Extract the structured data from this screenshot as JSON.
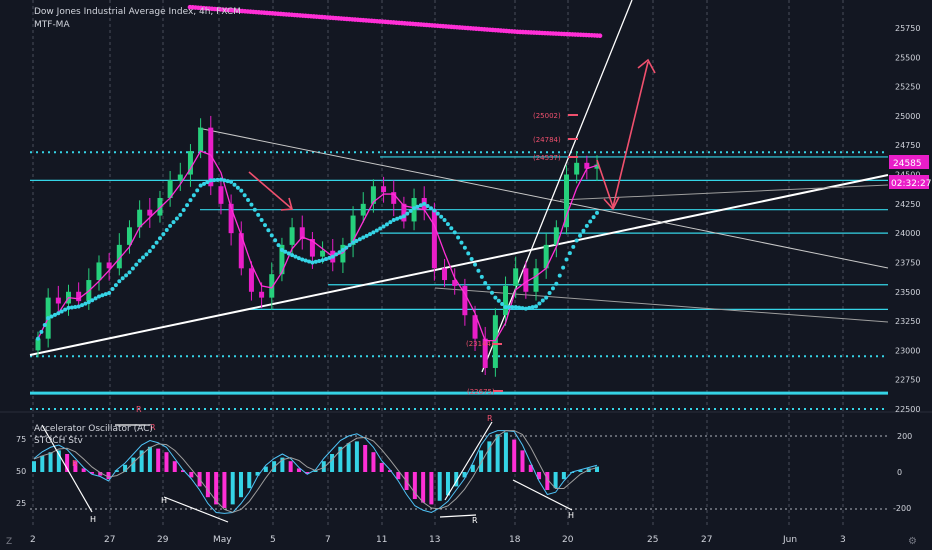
{
  "header": {
    "title": "Dow Jones Industrial Average Index, 4h, FXCM",
    "indicator": "MTF-MA"
  },
  "oscillator": {
    "name": "Accelerator Oscillator (AC)",
    "name2": "STOCH Stv"
  },
  "price_tag": {
    "last": "24585",
    "timer": "02:32:27",
    "color": "#e91ec8"
  },
  "colors": {
    "background": "#131722",
    "up": "#26d07c",
    "down": "#e91ec8",
    "cyan": "#35d4e6",
    "magenta": "#ff2fd6",
    "arrow": "#f0506e"
  },
  "bottom_corner": "Z",
  "annotations": {
    "targets": [
      "(25002)",
      "(24784)",
      "(24537)",
      "(23144)",
      "(22675)"
    ],
    "osc_marks": [
      "R",
      "R",
      "R",
      "H",
      "H",
      "R",
      "H",
      "R"
    ]
  },
  "chart_data": [
    {
      "type": "candlestick",
      "title": "Dow Jones Industrial Average Index, 4h, FXCM",
      "y_axis": {
        "ticks": [
          22500,
          22750,
          23000,
          23250,
          23500,
          23750,
          24000,
          24250,
          24500,
          24750,
          25000,
          25250,
          25500,
          25750
        ],
        "range": [
          22450,
          25900
        ]
      },
      "x_axis": {
        "ticks": [
          "2",
          "27",
          "29",
          "May",
          "5",
          "7",
          "11",
          "13",
          "18",
          "20",
          "25",
          "27",
          "Jun",
          "3"
        ]
      },
      "close_series": [
        23100,
        23450,
        23400,
        23500,
        23420,
        23600,
        23750,
        23700,
        23900,
        24050,
        24200,
        24150,
        24300,
        24450,
        24500,
        24700,
        24900,
        24400,
        24250,
        24000,
        23700,
        23500,
        23450,
        23650,
        23900,
        24050,
        23950,
        23800,
        23850,
        23750,
        23900,
        24150,
        24250,
        24400,
        24350,
        24250,
        24100,
        24300,
        24200,
        23700,
        23600,
        23550,
        23300,
        23100,
        22850,
        23300,
        23550,
        23700,
        23500,
        23700,
        23900,
        24050,
        24500,
        24600,
        24550,
        24585
      ],
      "moving_averages": [
        {
          "name": "MTF-MA",
          "values": [
            25800,
            25780,
            25760,
            25740,
            25720,
            25700,
            25680,
            25660,
            25640,
            25630,
            25620
          ]
        }
      ],
      "horizontal_levels": [
        22635,
        22950,
        23350,
        23560,
        24000,
        24200,
        24450,
        24650,
        24690
      ]
    },
    {
      "type": "bar",
      "title": "Accelerator Oscillator (AC)",
      "y_axis": {
        "ticks": [
          200,
          0,
          -200
        ]
      },
      "stoch_axis": {
        "ticks": [
          75,
          50,
          25
        ]
      },
      "values": [
        60,
        90,
        110,
        120,
        100,
        60,
        20,
        -10,
        -20,
        -40,
        10,
        40,
        80,
        120,
        140,
        130,
        110,
        60,
        10,
        -30,
        -80,
        -140,
        -180,
        -200,
        -180,
        -140,
        -90,
        -20,
        30,
        60,
        80,
        60,
        20,
        -10,
        10,
        60,
        100,
        140,
        160,
        170,
        150,
        110,
        50,
        10,
        -40,
        -100,
        -150,
        -170,
        -180,
        -160,
        -130,
        -80,
        -30,
        40,
        120,
        170,
        210,
        220,
        180,
        120,
        40,
        -40,
        -100,
        -90,
        -40,
        0,
        10,
        20,
        30
      ]
    }
  ]
}
